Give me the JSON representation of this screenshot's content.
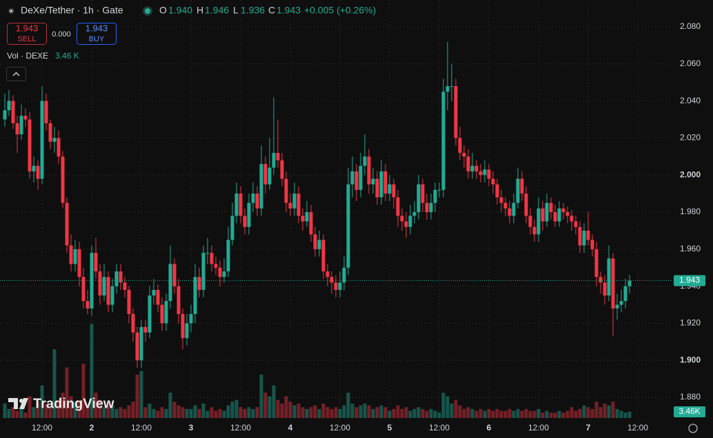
{
  "header": {
    "symbol": "DeXe/Tether · 1h · Gate",
    "o_label": "O",
    "o": "1.940",
    "h_label": "H",
    "h": "1.946",
    "l_label": "L",
    "l": "1.936",
    "c_label": "C",
    "c": "1.943",
    "change": "+0.005 (+0.26%)"
  },
  "trade": {
    "sell_price": "1.943",
    "sell": "SELL",
    "spread": "0.000",
    "buy_price": "1.943",
    "buy": "BUY"
  },
  "volume_legend": {
    "name": "Vol · DEXE",
    "value": "3.46 K"
  },
  "watermark": "TradingView",
  "chart_data": {
    "type": "candlestick",
    "up_color": "#22ab94",
    "down_color": "#f23645",
    "grid": true,
    "ylim": [
      1.867,
      2.0945
    ],
    "vlim": [
      0,
      231000
    ],
    "xlim": [
      -1.167,
      161.333
    ],
    "yticks": [
      {
        "value": 1.88,
        "label": "1.880"
      },
      {
        "value": 1.9,
        "label": "1.900"
      },
      {
        "value": 1.92,
        "label": "1.920"
      },
      {
        "value": 1.94,
        "label": "1.940"
      },
      {
        "value": 1.96,
        "label": "1.960"
      },
      {
        "value": 1.98,
        "label": "1.980"
      },
      {
        "value": 2.0,
        "label": "2.000"
      },
      {
        "value": 2.02,
        "label": "2.020"
      },
      {
        "value": 2.04,
        "label": "2.040"
      },
      {
        "value": 2.06,
        "label": "2.060"
      },
      {
        "value": 2.08,
        "label": "2.080"
      }
    ],
    "xticks": [
      {
        "value": 9,
        "label": "12:00"
      },
      {
        "value": 21,
        "label": "2"
      },
      {
        "value": 33,
        "label": "12:00"
      },
      {
        "value": 45,
        "label": "3"
      },
      {
        "value": 57,
        "label": "12:00"
      },
      {
        "value": 69,
        "label": "4"
      },
      {
        "value": 81,
        "label": "12:00"
      },
      {
        "value": 93,
        "label": "5"
      },
      {
        "value": 105,
        "label": "12:00"
      },
      {
        "value": 117,
        "label": "6"
      },
      {
        "value": 129,
        "label": "12:00"
      },
      {
        "value": 141,
        "label": "7"
      },
      {
        "value": 153,
        "label": "12:00"
      }
    ],
    "last_volume_label": "3.46K",
    "candles": [
      [
        2.03,
        2.044,
        2.026,
        2.035,
        8000
      ],
      [
        2.035,
        2.046,
        2.032,
        2.04,
        5000
      ],
      [
        2.04,
        2.043,
        2.025,
        2.028,
        6000
      ],
      [
        2.028,
        2.032,
        2.012,
        2.022,
        4000
      ],
      [
        2.022,
        2.038,
        2.019,
        2.032,
        5000
      ],
      [
        2.032,
        2.036,
        2.026,
        2.03,
        3000
      ],
      [
        2.03,
        2.034,
        1.998,
        2.002,
        12000
      ],
      [
        2.002,
        2.01,
        1.996,
        2.005,
        6000
      ],
      [
        2.005,
        2.008,
        1.992,
        1.998,
        9000
      ],
      [
        1.998,
        2.048,
        1.995,
        2.04,
        18000
      ],
      [
        2.04,
        2.044,
        2.024,
        2.028,
        8000
      ],
      [
        2.028,
        2.03,
        2.014,
        2.018,
        6000
      ],
      [
        2.018,
        2.026,
        2.012,
        2.02,
        38000
      ],
      [
        2.02,
        2.024,
        2.006,
        2.01,
        10000
      ],
      [
        2.01,
        2.013,
        1.982,
        1.985,
        14000
      ],
      [
        1.985,
        1.988,
        1.958,
        1.962,
        28000
      ],
      [
        1.962,
        1.968,
        1.948,
        1.952,
        12000
      ],
      [
        1.952,
        1.965,
        1.948,
        1.96,
        9000
      ],
      [
        1.96,
        1.964,
        1.94,
        1.945,
        10000
      ],
      [
        1.945,
        1.95,
        1.928,
        1.932,
        30000
      ],
      [
        1.932,
        1.938,
        1.925,
        1.928,
        8000
      ],
      [
        1.928,
        1.962,
        1.924,
        1.958,
        52000
      ],
      [
        1.958,
        1.966,
        1.944,
        1.948,
        14000
      ],
      [
        1.948,
        1.952,
        1.93,
        1.935,
        10000
      ],
      [
        1.935,
        1.952,
        1.932,
        1.945,
        6000
      ],
      [
        1.945,
        1.948,
        1.926,
        1.93,
        8000
      ],
      [
        1.93,
        1.944,
        1.926,
        1.94,
        7000
      ],
      [
        1.94,
        1.952,
        1.936,
        1.948,
        5000
      ],
      [
        1.948,
        1.952,
        1.938,
        1.942,
        6000
      ],
      [
        1.942,
        1.945,
        1.934,
        1.938,
        5000
      ],
      [
        1.938,
        1.94,
        1.92,
        1.925,
        7000
      ],
      [
        1.925,
        1.928,
        1.91,
        1.915,
        9000
      ],
      [
        1.915,
        1.918,
        1.896,
        1.9,
        24000
      ],
      [
        1.9,
        1.922,
        1.896,
        1.918,
        26000
      ],
      [
        1.918,
        1.922,
        1.91,
        1.915,
        6000
      ],
      [
        1.915,
        1.94,
        1.912,
        1.935,
        8000
      ],
      [
        1.935,
        1.944,
        1.93,
        1.938,
        5000
      ],
      [
        1.938,
        1.941,
        1.926,
        1.93,
        4000
      ],
      [
        1.93,
        1.934,
        1.916,
        1.92,
        6000
      ],
      [
        1.92,
        1.936,
        1.916,
        1.932,
        5000
      ],
      [
        1.932,
        1.962,
        1.928,
        1.952,
        14000
      ],
      [
        1.952,
        1.955,
        1.936,
        1.94,
        9000
      ],
      [
        1.94,
        1.944,
        1.92,
        1.925,
        7000
      ],
      [
        1.925,
        1.928,
        1.906,
        1.912,
        6000
      ],
      [
        1.912,
        1.925,
        1.908,
        1.92,
        5000
      ],
      [
        1.92,
        1.93,
        1.915,
        1.925,
        5000
      ],
      [
        1.925,
        1.952,
        1.92,
        1.945,
        7000
      ],
      [
        1.945,
        1.95,
        1.934,
        1.938,
        5000
      ],
      [
        1.938,
        1.962,
        1.934,
        1.958,
        8000
      ],
      [
        1.958,
        1.966,
        1.952,
        1.958,
        4000
      ],
      [
        1.958,
        1.962,
        1.948,
        1.952,
        6000
      ],
      [
        1.952,
        1.956,
        1.946,
        1.95,
        4000
      ],
      [
        1.95,
        1.954,
        1.94,
        1.945,
        5000
      ],
      [
        1.945,
        1.955,
        1.942,
        1.948,
        4000
      ],
      [
        1.948,
        1.972,
        1.945,
        1.965,
        7000
      ],
      [
        1.965,
        1.985,
        1.962,
        1.978,
        9000
      ],
      [
        1.978,
        1.996,
        1.974,
        1.99,
        10000
      ],
      [
        1.99,
        1.994,
        1.974,
        1.978,
        6000
      ],
      [
        1.978,
        1.982,
        1.968,
        1.972,
        5000
      ],
      [
        1.972,
        1.99,
        1.968,
        1.985,
        6000
      ],
      [
        1.985,
        1.996,
        1.98,
        1.99,
        5000
      ],
      [
        1.99,
        1.994,
        1.978,
        1.982,
        6000
      ],
      [
        1.982,
        2.016,
        1.978,
        2.006,
        24000
      ],
      [
        2.006,
        2.01,
        1.99,
        1.995,
        14000
      ],
      [
        1.995,
        2.02,
        1.992,
        2.004,
        12000
      ],
      [
        2.004,
        2.042,
        2.0,
        2.012,
        18000
      ],
      [
        2.012,
        2.03,
        2.004,
        2.008,
        10000
      ],
      [
        2.008,
        2.012,
        1.994,
        1.998,
        8000
      ],
      [
        1.998,
        2.002,
        1.98,
        1.985,
        12000
      ],
      [
        1.985,
        1.99,
        1.978,
        1.982,
        9000
      ],
      [
        1.982,
        1.996,
        1.978,
        1.99,
        7000
      ],
      [
        1.99,
        1.994,
        1.974,
        1.978,
        8000
      ],
      [
        1.978,
        1.982,
        1.97,
        1.975,
        6000
      ],
      [
        1.975,
        1.986,
        1.972,
        1.98,
        5000
      ],
      [
        1.98,
        1.984,
        1.964,
        1.968,
        6000
      ],
      [
        1.968,
        1.972,
        1.956,
        1.96,
        7000
      ],
      [
        1.96,
        1.97,
        1.956,
        1.965,
        5000
      ],
      [
        1.965,
        1.968,
        1.944,
        1.948,
        8000
      ],
      [
        1.948,
        1.952,
        1.94,
        1.945,
        6000
      ],
      [
        1.945,
        1.948,
        1.936,
        1.942,
        5000
      ],
      [
        1.942,
        1.946,
        1.934,
        1.938,
        6000
      ],
      [
        1.938,
        1.948,
        1.934,
        1.942,
        5000
      ],
      [
        1.942,
        1.956,
        1.938,
        1.95,
        7000
      ],
      [
        1.95,
        2.004,
        1.946,
        1.995,
        14000
      ],
      [
        1.995,
        2.01,
        1.988,
        2.002,
        8000
      ],
      [
        2.002,
        2.006,
        1.986,
        1.992,
        6000
      ],
      [
        1.992,
        2.012,
        1.988,
        2.005,
        7000
      ],
      [
        2.005,
        2.022,
        2.0,
        2.01,
        8000
      ],
      [
        2.01,
        2.014,
        1.99,
        1.995,
        7000
      ],
      [
        1.995,
        2.004,
        1.99,
        1.998,
        5000
      ],
      [
        1.998,
        2.002,
        1.984,
        1.988,
        6000
      ],
      [
        1.988,
        2.008,
        1.984,
        2.002,
        7000
      ],
      [
        2.002,
        2.006,
        1.986,
        1.99,
        6000
      ],
      [
        1.99,
        2.0,
        1.986,
        1.995,
        4000
      ],
      [
        1.995,
        1.998,
        1.982,
        1.988,
        5000
      ],
      [
        1.988,
        1.992,
        1.972,
        1.978,
        7000
      ],
      [
        1.978,
        1.982,
        1.97,
        1.975,
        5000
      ],
      [
        1.975,
        1.98,
        1.966,
        1.972,
        6000
      ],
      [
        1.972,
        1.984,
        1.968,
        1.978,
        4000
      ],
      [
        1.978,
        1.986,
        1.974,
        1.98,
        5000
      ],
      [
        1.98,
        2.0,
        1.976,
        1.995,
        6000
      ],
      [
        1.995,
        1.998,
        1.98,
        1.985,
        5000
      ],
      [
        1.985,
        1.99,
        1.976,
        1.98,
        4000
      ],
      [
        1.98,
        1.99,
        1.976,
        1.985,
        5000
      ],
      [
        1.985,
        1.996,
        1.98,
        1.992,
        4000
      ],
      [
        1.992,
        1.996,
        1.988,
        1.992,
        3000
      ],
      [
        1.992,
        2.052,
        1.988,
        2.045,
        14000
      ],
      [
        2.045,
        2.072,
        2.035,
        2.048,
        12000
      ],
      [
        2.048,
        2.06,
        2.04,
        2.048,
        8000
      ],
      [
        2.048,
        2.052,
        2.016,
        2.02,
        10000
      ],
      [
        2.02,
        2.026,
        2.008,
        2.012,
        7000
      ],
      [
        2.012,
        2.016,
        2.004,
        2.01,
        5000
      ],
      [
        2.01,
        2.014,
        1.998,
        2.002,
        6000
      ],
      [
        2.002,
        2.012,
        1.998,
        2.005,
        5000
      ],
      [
        2.005,
        2.008,
        1.998,
        2.002,
        4000
      ],
      [
        2.002,
        2.006,
        1.996,
        2.0,
        5000
      ],
      [
        2.0,
        2.008,
        1.996,
        2.003,
        4000
      ],
      [
        2.003,
        2.006,
        1.994,
        1.998,
        5000
      ],
      [
        1.998,
        2.002,
        1.99,
        1.995,
        4000
      ],
      [
        1.995,
        1.998,
        1.984,
        1.988,
        5000
      ],
      [
        1.988,
        1.992,
        1.98,
        1.985,
        4000
      ],
      [
        1.985,
        1.988,
        1.978,
        1.982,
        4000
      ],
      [
        1.982,
        1.986,
        1.974,
        1.978,
        5000
      ],
      [
        1.978,
        1.99,
        1.974,
        1.985,
        4000
      ],
      [
        1.985,
        2.004,
        1.982,
        1.998,
        5000
      ],
      [
        1.998,
        2.002,
        1.986,
        1.99,
        4000
      ],
      [
        1.99,
        1.994,
        1.974,
        1.978,
        5000
      ],
      [
        1.978,
        1.982,
        1.968,
        1.972,
        4000
      ],
      [
        1.972,
        1.976,
        1.964,
        1.968,
        4000
      ],
      [
        1.968,
        1.988,
        1.964,
        1.982,
        5000
      ],
      [
        1.982,
        1.986,
        1.97,
        1.975,
        3000
      ],
      [
        1.975,
        1.99,
        1.972,
        1.985,
        4000
      ],
      [
        1.985,
        1.988,
        1.976,
        1.98,
        3000
      ],
      [
        1.98,
        1.984,
        1.972,
        1.975,
        3000
      ],
      [
        1.975,
        1.986,
        1.972,
        1.982,
        4000
      ],
      [
        1.982,
        1.985,
        1.976,
        1.98,
        3000
      ],
      [
        1.98,
        1.983,
        1.974,
        1.978,
        4000
      ],
      [
        1.978,
        1.981,
        1.97,
        1.975,
        6000
      ],
      [
        1.975,
        1.978,
        1.968,
        1.972,
        4000
      ],
      [
        1.972,
        1.975,
        1.958,
        1.962,
        5000
      ],
      [
        1.962,
        1.974,
        1.958,
        1.97,
        7000
      ],
      [
        1.97,
        1.98,
        1.962,
        1.965,
        6000
      ],
      [
        1.965,
        1.968,
        1.956,
        1.96,
        5000
      ],
      [
        1.96,
        1.964,
        1.94,
        1.945,
        9000
      ],
      [
        1.945,
        1.948,
        1.936,
        1.942,
        6000
      ],
      [
        1.942,
        1.946,
        1.93,
        1.935,
        8000
      ],
      [
        1.935,
        1.962,
        1.932,
        1.955,
        7000
      ],
      [
        1.955,
        1.958,
        1.913,
        1.928,
        9000
      ],
      [
        1.928,
        1.936,
        1.922,
        1.93,
        5000
      ],
      [
        1.93,
        1.938,
        1.926,
        1.932,
        4000
      ],
      [
        1.932,
        1.944,
        1.928,
        1.94,
        3000
      ],
      [
        1.94,
        1.946,
        1.936,
        1.943,
        3460
      ]
    ]
  }
}
